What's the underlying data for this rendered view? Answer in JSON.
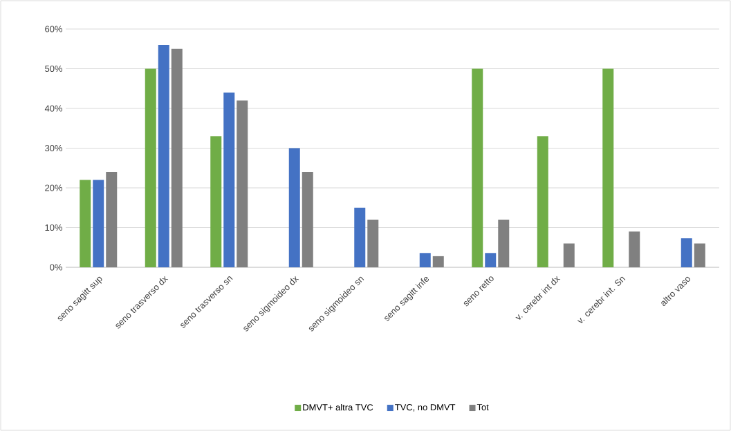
{
  "chart_data": {
    "type": "bar",
    "categories": [
      "seno sagitt sup",
      "seno trasverso dx",
      "seno trasverso sn",
      "seno sigmoideo dx",
      "seno sigmoideo sn",
      "seno sagitt infe",
      "seno retto",
      "v. cerebr int dx",
      "v. cerebr int. Sn",
      "altro vaso"
    ],
    "series": [
      {
        "name": "DMVT+ altra TVC",
        "color": "#70ad47",
        "values": [
          22,
          50,
          33,
          null,
          null,
          null,
          50,
          33,
          50,
          null
        ]
      },
      {
        "name": "TVC, no DMVT",
        "color": "#4472c4",
        "values": [
          22,
          56,
          44,
          30,
          15,
          3.6,
          3.6,
          null,
          null,
          7.3
        ]
      },
      {
        "name": "Tot",
        "color": "#808080",
        "values": [
          24,
          55,
          42,
          24,
          12,
          2.8,
          12,
          6,
          9,
          6
        ]
      }
    ],
    "ylim": [
      0,
      60
    ],
    "yticks": [
      {
        "value": 0,
        "label": "0%"
      },
      {
        "value": 10,
        "label": "10%"
      },
      {
        "value": 20,
        "label": "20%"
      },
      {
        "value": 30,
        "label": "30%"
      },
      {
        "value": 40,
        "label": "40%"
      },
      {
        "value": 50,
        "label": "50%"
      },
      {
        "value": 60,
        "label": "60%"
      }
    ],
    "grid": "y",
    "legend": "bottom"
  }
}
